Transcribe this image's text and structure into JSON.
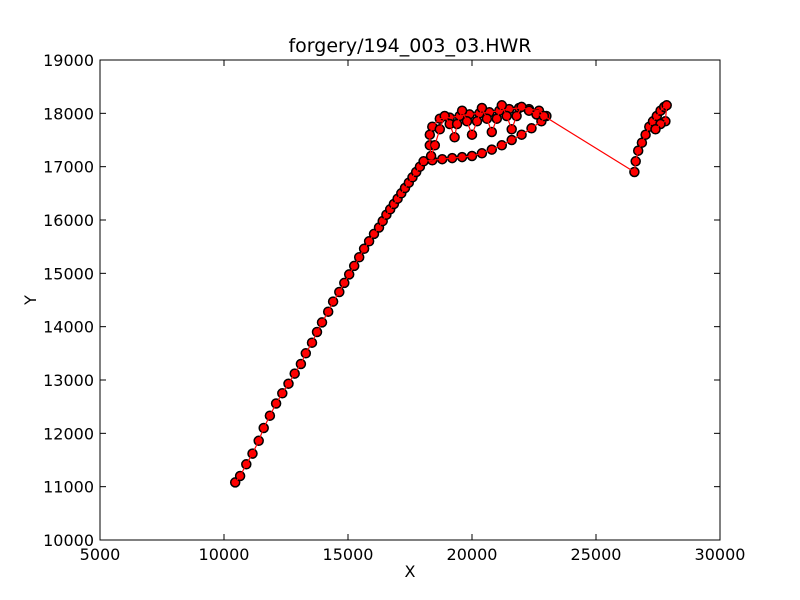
{
  "chart_data": {
    "type": "scatter",
    "title": "forgery/194_003_03.HWR",
    "xlabel": "X",
    "ylabel": "Y",
    "xlim": [
      5000,
      30000
    ],
    "ylim": [
      10000,
      19000
    ],
    "xticks": [
      "5000",
      "10000",
      "15000",
      "20000",
      "25000",
      "30000"
    ],
    "yticks": [
      "10000",
      "11000",
      "12000",
      "13000",
      "14000",
      "15000",
      "16000",
      "17000",
      "18000",
      "19000"
    ],
    "grid": false,
    "legend": "none",
    "line_color": "#ff0000",
    "marker_fill": "#ff0000",
    "marker_edge": "#000000",
    "series": [
      {
        "points": [
          [
            10450,
            11080
          ],
          [
            10650,
            11200
          ],
          [
            10900,
            11420
          ],
          [
            11150,
            11620
          ],
          [
            11400,
            11860
          ],
          [
            11600,
            12100
          ],
          [
            11850,
            12330
          ],
          [
            12100,
            12560
          ],
          [
            12350,
            12750
          ],
          [
            12600,
            12930
          ],
          [
            12850,
            13120
          ],
          [
            13100,
            13300
          ],
          [
            13300,
            13500
          ],
          [
            13550,
            13700
          ],
          [
            13750,
            13900
          ],
          [
            13950,
            14080
          ],
          [
            14200,
            14280
          ],
          [
            14400,
            14470
          ],
          [
            14650,
            14650
          ],
          [
            14850,
            14820
          ],
          [
            15050,
            14980
          ],
          [
            15250,
            15140
          ],
          [
            15450,
            15300
          ],
          [
            15650,
            15460
          ],
          [
            15850,
            15600
          ],
          [
            16050,
            15740
          ],
          [
            16250,
            15860
          ],
          [
            16400,
            15980
          ],
          [
            16550,
            16100
          ],
          [
            16700,
            16200
          ],
          [
            16850,
            16300
          ],
          [
            17000,
            16400
          ],
          [
            17150,
            16500
          ],
          [
            17300,
            16600
          ],
          [
            17450,
            16700
          ],
          [
            17600,
            16800
          ],
          [
            17750,
            16900
          ],
          [
            17900,
            17000
          ],
          [
            18050,
            17100
          ],
          [
            18400,
            17120
          ],
          [
            18800,
            17140
          ],
          [
            19200,
            17160
          ],
          [
            19600,
            17180
          ],
          [
            20000,
            17200
          ],
          [
            20400,
            17250
          ],
          [
            20800,
            17320
          ],
          [
            21200,
            17400
          ],
          [
            21600,
            17500
          ],
          [
            22000,
            17600
          ],
          [
            22400,
            17720
          ],
          [
            22800,
            17850
          ],
          [
            23000,
            17950
          ],
          [
            22700,
            18050
          ],
          [
            22300,
            18080
          ],
          [
            21900,
            18100
          ],
          [
            21500,
            18080
          ],
          [
            21100,
            18050
          ],
          [
            20700,
            18020
          ],
          [
            20300,
            18000
          ],
          [
            19900,
            17980
          ],
          [
            19500,
            17950
          ],
          [
            19100,
            17920
          ],
          [
            18700,
            17900
          ],
          [
            18400,
            17750
          ],
          [
            18300,
            17600
          ],
          [
            18300,
            17400
          ],
          [
            18350,
            17200
          ],
          [
            18500,
            17400
          ],
          [
            18700,
            17700
          ],
          [
            18900,
            17950
          ],
          [
            19100,
            17800
          ],
          [
            19300,
            17550
          ],
          [
            19400,
            17800
          ],
          [
            19600,
            18050
          ],
          [
            19800,
            17850
          ],
          [
            20000,
            17600
          ],
          [
            20200,
            17850
          ],
          [
            20400,
            18100
          ],
          [
            20600,
            17900
          ],
          [
            20800,
            17650
          ],
          [
            21000,
            17900
          ],
          [
            21200,
            18150
          ],
          [
            21400,
            17950
          ],
          [
            21600,
            17700
          ],
          [
            21800,
            17950
          ],
          [
            22000,
            18120
          ],
          [
            22300,
            18050
          ],
          [
            22600,
            17980
          ],
          [
            22900,
            17950
          ],
          [
            26550,
            16900
          ],
          [
            26600,
            17100
          ],
          [
            26700,
            17300
          ],
          [
            26850,
            17450
          ],
          [
            27000,
            17600
          ],
          [
            27150,
            17750
          ],
          [
            27300,
            17850
          ],
          [
            27450,
            17950
          ],
          [
            27600,
            18050
          ],
          [
            27750,
            18120
          ],
          [
            27850,
            18150
          ],
          [
            27800,
            17850
          ],
          [
            27600,
            17800
          ],
          [
            27400,
            17700
          ]
        ]
      }
    ]
  }
}
